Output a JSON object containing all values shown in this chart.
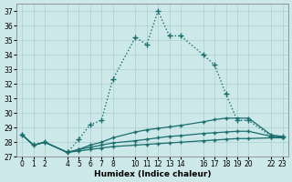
{
  "xlabel": "Humidex (Indice chaleur)",
  "bg_color": "#cce8e8",
  "grid_color": "#aacfcf",
  "line_color": "#1a6e6e",
  "x_ticks": [
    0,
    1,
    2,
    4,
    5,
    6,
    7,
    8,
    10,
    11,
    12,
    13,
    14,
    16,
    17,
    18,
    19,
    20,
    22,
    23
  ],
  "ylim": [
    27,
    37.5
  ],
  "xlim": [
    -0.5,
    23.5
  ],
  "series": [
    {
      "x": [
        0,
        1,
        2,
        4,
        5,
        6,
        7,
        8,
        10,
        11,
        12,
        13,
        14,
        16,
        17,
        18,
        19,
        20,
        22,
        23
      ],
      "y": [
        28.5,
        27.8,
        28.0,
        27.3,
        28.2,
        29.2,
        29.5,
        32.3,
        35.2,
        34.7,
        37.0,
        35.3,
        35.3,
        34.0,
        33.3,
        31.3,
        29.5,
        29.5,
        28.4,
        28.4
      ],
      "style": ":",
      "marker": "+",
      "markersize": 4,
      "linewidth": 1.0
    },
    {
      "x": [
        0,
        1,
        2,
        4,
        5,
        6,
        7,
        8,
        10,
        11,
        12,
        13,
        14,
        16,
        17,
        18,
        19,
        20,
        22,
        23
      ],
      "y": [
        28.5,
        27.8,
        28.0,
        27.3,
        27.5,
        27.8,
        28.0,
        28.3,
        28.7,
        28.85,
        28.95,
        29.05,
        29.15,
        29.4,
        29.55,
        29.65,
        29.65,
        29.65,
        28.5,
        28.4
      ],
      "style": "-",
      "marker": "+",
      "markersize": 3,
      "linewidth": 0.9
    },
    {
      "x": [
        0,
        1,
        2,
        4,
        5,
        6,
        7,
        8,
        10,
        11,
        12,
        13,
        14,
        16,
        17,
        18,
        19,
        20,
        22,
        23
      ],
      "y": [
        28.5,
        27.8,
        28.0,
        27.3,
        27.5,
        27.65,
        27.8,
        27.95,
        28.1,
        28.2,
        28.3,
        28.4,
        28.45,
        28.6,
        28.65,
        28.7,
        28.75,
        28.75,
        28.4,
        28.35
      ],
      "style": "-",
      "marker": "+",
      "markersize": 3,
      "linewidth": 0.9
    },
    {
      "x": [
        0,
        1,
        2,
        4,
        5,
        6,
        7,
        8,
        10,
        11,
        12,
        13,
        14,
        16,
        17,
        18,
        19,
        20,
        22,
        23
      ],
      "y": [
        28.5,
        27.8,
        28.0,
        27.3,
        27.4,
        27.5,
        27.6,
        27.7,
        27.8,
        27.85,
        27.9,
        27.95,
        28.0,
        28.1,
        28.15,
        28.2,
        28.25,
        28.25,
        28.3,
        28.3
      ],
      "style": "-",
      "marker": "+",
      "markersize": 3,
      "linewidth": 0.9
    }
  ]
}
